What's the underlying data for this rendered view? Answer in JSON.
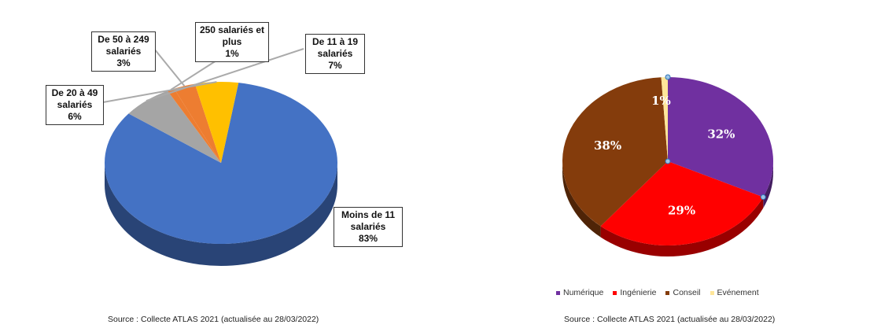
{
  "chart_data": [
    {
      "type": "pie",
      "title": "",
      "categories": [
        "Moins de 11 salariés",
        "De 11 à 19 salariés",
        "250 salariés et plus",
        "De 50 à 249 salariés",
        "De 20 à 49 salariés"
      ],
      "values": [
        83,
        7,
        1,
        3,
        6
      ],
      "labels": [
        {
          "lines": [
            "Moins de 11",
            "salariés",
            "83%"
          ]
        },
        {
          "lines": [
            "De 11 à 19",
            "salariés",
            "7%"
          ]
        },
        {
          "lines": [
            "250 salariés et",
            "plus",
            "1%"
          ]
        },
        {
          "lines": [
            "De 50 à 249",
            "salariés",
            "3%"
          ]
        },
        {
          "lines": [
            "De 20 à 49",
            "salariés",
            "6%"
          ]
        }
      ],
      "colors": [
        "#4472c4",
        "#a5a5a5",
        "#ed7d31",
        "#ed7d31",
        "#ffc000"
      ],
      "style": "3d"
    },
    {
      "type": "pie",
      "title": "",
      "categories": [
        "Numérique",
        "Ingénierie",
        "Conseil",
        "Evénement"
      ],
      "values": [
        32,
        29,
        38,
        1
      ],
      "data_labels": [
        "32%",
        "29%",
        "38%",
        "1%"
      ],
      "colors": [
        "#7030a0",
        "#ff0000",
        "#843c0c",
        "#ffe699"
      ],
      "legend": "bottom",
      "style": "3d"
    }
  ],
  "sources": {
    "left": "Source : Collecte ATLAS 2021 (actualisée au 28/03/2022)",
    "right": "Source : Collecte ATLAS 2021 (actualisée au 28/03/2022)"
  }
}
